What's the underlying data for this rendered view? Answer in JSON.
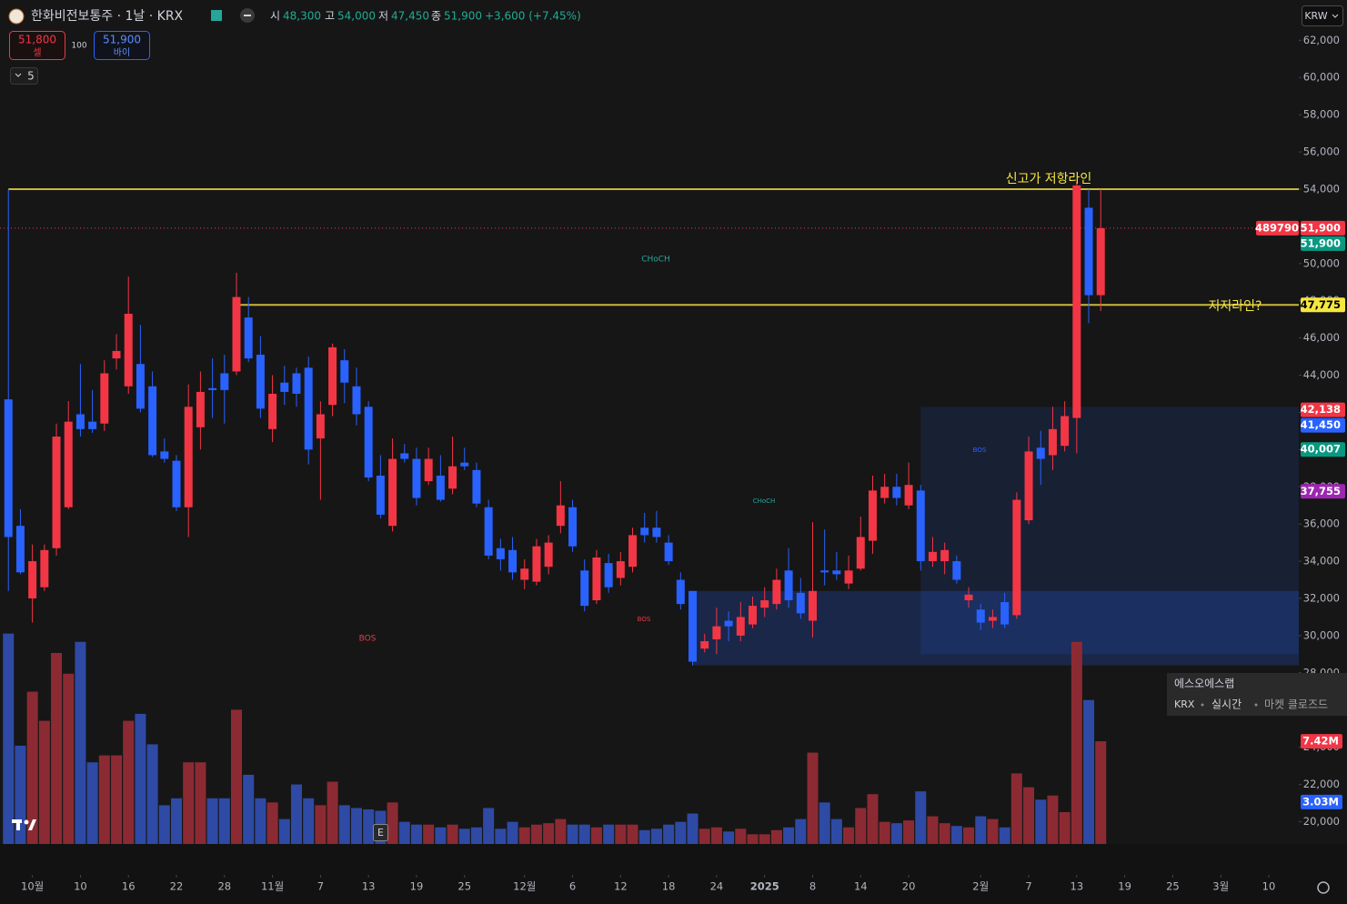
{
  "header": {
    "symbol": "한화비전보통주 · 1날 · KRX",
    "ohlc": [
      {
        "key": "시",
        "value": "48,300"
      },
      {
        "key": "고",
        "value": "54,000"
      },
      {
        "key": "저",
        "value": "47,450"
      },
      {
        "key": "종",
        "value": "51,900"
      }
    ],
    "change": "+3,600 (+7.45%)",
    "sell": {
      "price": "51,800",
      "label": "셀"
    },
    "quantity": "100",
    "buy": {
      "price": "51,900",
      "label": "바이"
    },
    "interval_dropdown": "5",
    "currency": "KRW"
  },
  "info_popup": {
    "name": "에스오에스랩",
    "exchange": "KRX",
    "mode": "실시간",
    "status": "마켓 클로즈드"
  },
  "event_marker": "E",
  "chart_data": {
    "type": "candlestick",
    "xlim": [
      -0.7,
      107.5
    ],
    "ylim": [
      18800,
      62700
    ],
    "volume_ylim": [
      0,
      59
    ],
    "grid": false,
    "up_color": "#f23645",
    "down_color": "#2962ff",
    "volume_up_color": "#8c2a33",
    "volume_down_color": "#2e4aa5",
    "xticks": [
      {
        "value": 2,
        "label": "10월"
      },
      {
        "value": 6,
        "label": "10"
      },
      {
        "value": 10,
        "label": "16"
      },
      {
        "value": 14,
        "label": "22"
      },
      {
        "value": 18,
        "label": "28"
      },
      {
        "value": 22,
        "label": "11월"
      },
      {
        "value": 26,
        "label": "7"
      },
      {
        "value": 30,
        "label": "13"
      },
      {
        "value": 34,
        "label": "19"
      },
      {
        "value": 38,
        "label": "25"
      },
      {
        "value": 43,
        "label": "12월"
      },
      {
        "value": 47,
        "label": "6"
      },
      {
        "value": 51,
        "label": "12"
      },
      {
        "value": 55,
        "label": "18"
      },
      {
        "value": 59,
        "label": "24"
      },
      {
        "value": 63,
        "label": "2025"
      },
      {
        "value": 67,
        "label": "8"
      },
      {
        "value": 71,
        "label": "14"
      },
      {
        "value": 75,
        "label": "20"
      },
      {
        "value": 81,
        "label": "2월"
      },
      {
        "value": 85,
        "label": "7"
      },
      {
        "value": 89,
        "label": "13"
      },
      {
        "value": 93,
        "label": "19"
      },
      {
        "value": 97,
        "label": "25"
      },
      {
        "value": 101,
        "label": "3월"
      },
      {
        "value": 105,
        "label": "10"
      }
    ],
    "yticks": [
      {
        "value": 20000,
        "label": "20,000"
      },
      {
        "value": 22000,
        "label": "22,000"
      },
      {
        "value": 24000,
        "label": "24,000"
      },
      {
        "value": 26000,
        "label": "26,000"
      },
      {
        "value": 28000,
        "label": "28,000"
      },
      {
        "value": 30000,
        "label": "30,000"
      },
      {
        "value": 32000,
        "label": "32,000"
      },
      {
        "value": 34000,
        "label": "34,000"
      },
      {
        "value": 36000,
        "label": "36,000"
      },
      {
        "value": 38000,
        "label": "38,000"
      },
      {
        "value": 40000,
        "label": "40,000"
      },
      {
        "value": 42000,
        "label": "42,000"
      },
      {
        "value": 44000,
        "label": "44,000"
      },
      {
        "value": 46000,
        "label": "46,000"
      },
      {
        "value": 48000,
        "label": "48,000"
      },
      {
        "value": 50000,
        "label": "50,000"
      },
      {
        "value": 52000,
        "label": "52,000"
      },
      {
        "value": 54000,
        "label": "54,000"
      },
      {
        "value": 56000,
        "label": "56,000"
      },
      {
        "value": 58000,
        "label": "58,000"
      },
      {
        "value": 60000,
        "label": "60,000"
      },
      {
        "value": 62000,
        "label": "62,000"
      }
    ],
    "open": [
      42700,
      35900,
      32000,
      32600,
      34700,
      36900,
      41900,
      41500,
      41400,
      44900,
      43400,
      44600,
      43400,
      39900,
      39400,
      36900,
      41200,
      43300,
      44100,
      44200,
      47100,
      45100,
      41100,
      43600,
      44100,
      44400,
      40600,
      42400,
      44800,
      43400,
      42300,
      38600,
      35900,
      39800,
      39500,
      38300,
      38600,
      37900,
      39300,
      38900,
      36900,
      34700,
      34600,
      33000,
      32900,
      33700,
      35900,
      36900,
      33500,
      31900,
      33900,
      33100,
      33700,
      35800,
      35800,
      35000,
      33000,
      32400,
      29300,
      29800,
      30800,
      30000,
      30600,
      31500,
      31700,
      33500,
      32300,
      30800,
      33500,
      33500,
      32800,
      33600,
      35100,
      37400,
      38000,
      37000,
      37800,
      34000,
      34000,
      34000,
      31900,
      31400,
      30800,
      31800,
      31100,
      36200,
      40100,
      39700,
      40200,
      41700,
      53000,
      48300
    ],
    "high": [
      54000,
      36800,
      34900,
      34900,
      41400,
      42600,
      44600,
      43200,
      44800,
      46200,
      49300,
      46700,
      44200,
      40600,
      39700,
      43500,
      44200,
      44900,
      45100,
      49500,
      48200,
      46100,
      44000,
      44500,
      44400,
      45000,
      42600,
      45700,
      45400,
      44400,
      42600,
      39700,
      40600,
      40300,
      40100,
      40100,
      39700,
      40700,
      40100,
      39300,
      37300,
      35200,
      35300,
      34100,
      35200,
      35400,
      38300,
      37300,
      34100,
      34600,
      34400,
      34500,
      35800,
      36600,
      36700,
      35400,
      33400,
      32400,
      30100,
      31500,
      31300,
      31800,
      32100,
      32600,
      33600,
      34700,
      33100,
      36100,
      35700,
      34500,
      34300,
      36400,
      38600,
      38700,
      38700,
      39300,
      38100,
      35300,
      35000,
      34300,
      32600,
      31700,
      31400,
      32300,
      37700,
      40700,
      41000,
      42300,
      42600,
      54400,
      54000,
      54000
    ],
    "low": [
      32400,
      33300,
      30700,
      32400,
      34300,
      36800,
      40700,
      40900,
      41000,
      44300,
      43000,
      42000,
      39600,
      39300,
      36700,
      35300,
      40000,
      41700,
      41400,
      44000,
      44700,
      41700,
      40400,
      42400,
      42300,
      39200,
      37300,
      41800,
      42500,
      41300,
      38300,
      36300,
      35600,
      39300,
      37000,
      38100,
      37200,
      37600,
      38900,
      36900,
      34100,
      33500,
      33000,
      32500,
      32700,
      33300,
      35500,
      34500,
      31300,
      31700,
      32300,
      32700,
      33400,
      35000,
      35000,
      33800,
      31400,
      28400,
      29100,
      29000,
      29700,
      29700,
      30400,
      31000,
      31400,
      31500,
      30900,
      29900,
      32700,
      33000,
      32500,
      33500,
      34400,
      37100,
      37000,
      36800,
      33500,
      33700,
      33300,
      32800,
      31500,
      30300,
      30400,
      30400,
      30900,
      36000,
      38100,
      38900,
      39900,
      39800,
      46800,
      47450
    ],
    "close": [
      35300,
      33400,
      34000,
      34600,
      40700,
      41500,
      41100,
      41100,
      44100,
      45300,
      47300,
      42200,
      39700,
      39500,
      36900,
      42300,
      43100,
      43200,
      43200,
      48200,
      44900,
      42200,
      43000,
      43100,
      43000,
      40000,
      41900,
      45500,
      43600,
      41900,
      38500,
      36500,
      39500,
      39500,
      37400,
      39500,
      37300,
      39100,
      39100,
      37100,
      34300,
      34100,
      33400,
      33600,
      34800,
      35000,
      37000,
      34800,
      31600,
      34200,
      32600,
      34000,
      35400,
      35400,
      35300,
      34000,
      31700,
      28600,
      29700,
      30500,
      30500,
      31000,
      31600,
      31900,
      33000,
      31900,
      31200,
      32400,
      33400,
      33300,
      33500,
      35300,
      37800,
      38000,
      37400,
      38100,
      34000,
      34500,
      34600,
      33000,
      32200,
      30700,
      31000,
      30600,
      37300,
      39900,
      39500,
      41100,
      41800,
      54200,
      48300,
      51900
    ],
    "volume": [
      15.2,
      7.1,
      11.0,
      8.9,
      13.8,
      12.3,
      14.6,
      5.9,
      6.4,
      6.4,
      8.9,
      9.4,
      7.2,
      2.8,
      3.3,
      5.9,
      5.9,
      3.3,
      3.3,
      9.7,
      5.0,
      3.3,
      3.0,
      1.8,
      4.3,
      3.3,
      2.8,
      4.5,
      2.8,
      2.6,
      2.5,
      2.4,
      3.0,
      1.6,
      1.4,
      1.4,
      1.2,
      1.4,
      1.1,
      1.2,
      2.6,
      1.1,
      1.6,
      1.2,
      1.4,
      1.5,
      1.8,
      1.4,
      1.4,
      1.2,
      1.4,
      1.4,
      1.4,
      1.0,
      1.1,
      1.4,
      1.6,
      2.2,
      1.1,
      1.2,
      0.9,
      1.1,
      0.7,
      0.7,
      1.0,
      1.2,
      1.8,
      6.6,
      3.0,
      1.8,
      1.2,
      2.6,
      3.6,
      1.6,
      1.5,
      1.7,
      3.8,
      2.0,
      1.5,
      1.3,
      1.2,
      2.0,
      1.8,
      1.2,
      5.1,
      4.1,
      3.2,
      3.5,
      2.3,
      14.6,
      10.4,
      7.42
    ],
    "zones": [
      {
        "x_range": [
          76,
          107.5
        ],
        "y_range": [
          29000,
          42300
        ],
        "color": "rgba(41,98,255,0.13)"
      },
      {
        "x_range": [
          57,
          107.5
        ],
        "y_range": [
          28400,
          32400
        ],
        "color": "rgba(41,98,255,0.22)"
      }
    ],
    "hlines": [
      {
        "value": 54000,
        "x_from": 0,
        "color": "#c9b73c",
        "label": "신고가 저항라인"
      },
      {
        "value": 47775,
        "x_from": 19,
        "color": "#c9b73c",
        "label": "지지라인?"
      }
    ],
    "annotations": [
      "CHoCH",
      "BOS",
      "BOS",
      "CHoCH",
      "BOS"
    ],
    "price_tags": [
      {
        "value": 51900,
        "label": "51,900",
        "color": "#f23645",
        "text_color": "#ffffff",
        "tag": "489790"
      },
      {
        "value": 51900,
        "label": "51,900",
        "color": "#089981",
        "text_color": "#ffffff"
      },
      {
        "value": 47775,
        "label": "47,775",
        "color": "#f5e642",
        "text_color": "#000000"
      },
      {
        "value": 42138,
        "label": "42,138",
        "color": "#f23645",
        "text_color": "#ffffff"
      },
      {
        "value": 41450,
        "label": "41,450",
        "color": "#2962ff",
        "text_color": "#ffffff"
      },
      {
        "value": 40007,
        "label": "40,007",
        "color": "#089981",
        "text_color": "#ffffff"
      },
      {
        "value": 37755,
        "label": "37,755",
        "color": "#9c27b0",
        "text_color": "#ffffff"
      }
    ],
    "volume_tags": [
      {
        "value": 7.42,
        "label": "7.42M",
        "color": "#f23645"
      },
      {
        "value": 3.03,
        "label": "3.03M",
        "color": "#2962ff"
      }
    ]
  }
}
